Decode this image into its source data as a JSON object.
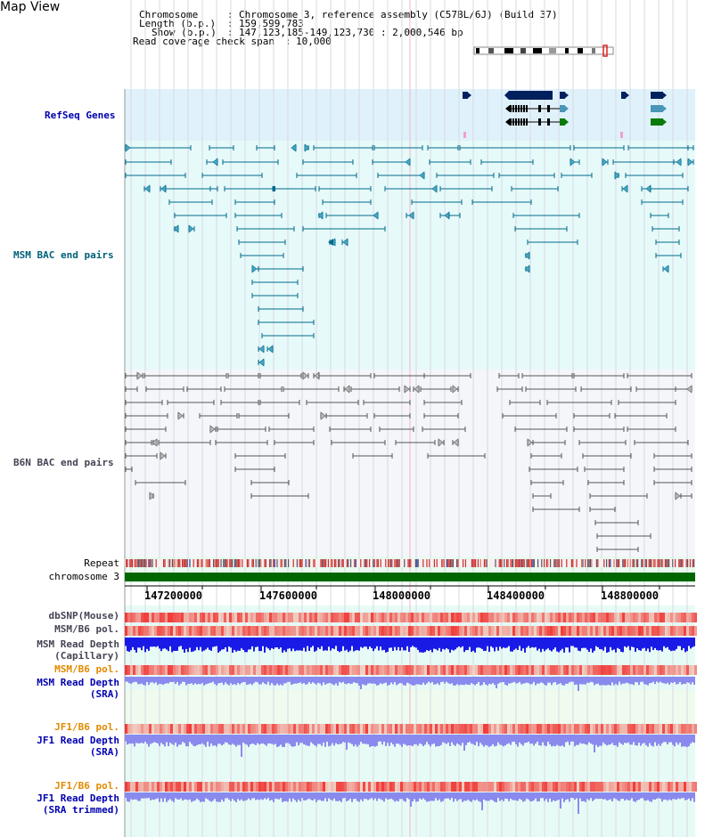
{
  "page": {
    "title": "Map View"
  },
  "info": {
    "chromosome_key": "Chromosome",
    "chromosome_value": "Chromosome 3, reference assembly (C57BL/6J) (Build 37)",
    "length_key": "Length (b.p.)",
    "length_value": "159,599,783",
    "show_key": "Show (b.p.)",
    "show_value": "147,123,185-149,123,730 : 2,000,546 bp",
    "span_key": "Read coverage check span",
    "span_value": "10,000"
  },
  "tracks": {
    "refseq": "RefSeq Genes",
    "msm_bac": "MSM BAC end pairs",
    "b6n_bac": "B6N BAC end pairs",
    "repeat": "Repeat",
    "chromosome": "chromosome 3",
    "dbsnp": "dbSNP(Mouse)",
    "msm_b6_pol_1": "MSM/B6 pol.",
    "msm_depth_cap_1": "MSM Read Depth",
    "msm_depth_cap_2": "(Capillary)",
    "msm_b6_pol_2": "MSM/B6 pol.",
    "msm_depth_sra_1": "MSM Read Depth",
    "msm_depth_sra_2": "(SRA)",
    "jf1_b6_pol_1": "JF1/B6 pol.",
    "jf1_depth_sra_1": "JF1 Read Depth",
    "jf1_depth_sra_2": "(SRA)",
    "jf1_b6_pol_2": "JF1/B6 pol.",
    "jf1_depth_trim_1": "JF1 Read Depth",
    "jf1_depth_trim_2": "(SRA trimmed)"
  },
  "axis": {
    "ticks": [
      "147200000",
      "147600000",
      "148000000",
      "148400000",
      "148800000"
    ]
  },
  "colors": {
    "refseq_bg": "#dff2fb",
    "msm_bg": "#e6fafa",
    "b6n_bg": "#f4f6fa",
    "gene": "#00205e",
    "msm_pair": "#006a8a",
    "b6n_pair": "#555555",
    "chromosome_bar": "#006600",
    "depth_cap": "#1a1ae6",
    "depth_sra": "#8a8aee",
    "pol_red": "#ee3333"
  }
}
